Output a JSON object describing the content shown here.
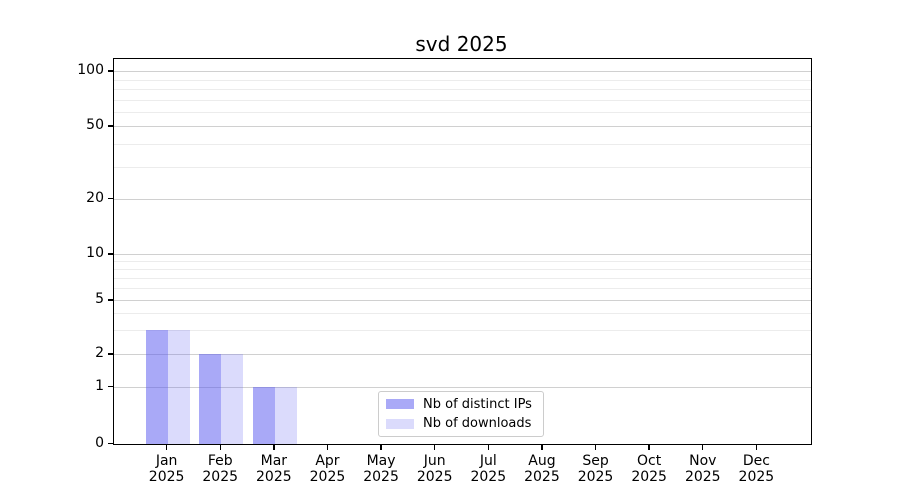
{
  "chart_data": {
    "type": "bar",
    "title": "svd 2025",
    "categories": [
      "Jan 2025",
      "Feb 2025",
      "Mar 2025",
      "Apr 2025",
      "May 2025",
      "Jun 2025",
      "Jul 2025",
      "Aug 2025",
      "Sep 2025",
      "Oct 2025",
      "Nov 2025",
      "Dec 2025"
    ],
    "series": [
      {
        "name": "Nb of distinct IPs",
        "color": "rgba(90,90,240,0.52)",
        "color_hex": "#a9a9f8",
        "values": [
          3,
          2,
          1,
          0,
          0,
          0,
          0,
          0,
          0,
          0,
          0,
          0
        ]
      },
      {
        "name": "Nb of downloads",
        "color": "rgba(90,90,240,0.22)",
        "color_hex": "#dadaf9",
        "values": [
          3,
          2,
          1,
          0,
          0,
          0,
          0,
          0,
          0,
          0,
          0,
          0
        ]
      }
    ],
    "y_axis": {
      "scale": "symlog",
      "major_ticks": [
        0,
        1,
        2,
        5,
        10,
        20,
        50,
        100
      ],
      "major_tick_labels": [
        "0",
        "1",
        "2",
        "5",
        "10",
        "20",
        "50",
        "100"
      ],
      "minor_ticks": [
        3,
        4,
        6,
        7,
        8,
        9,
        30,
        40,
        60,
        70,
        80,
        90
      ],
      "ylim": [
        0,
        118
      ]
    },
    "xlabel": "",
    "ylabel": "",
    "grid": true,
    "legend_position": "lower-center"
  },
  "colors": {
    "major_grid": "#d0d0d0",
    "minor_grid": "#ececec",
    "spine": "#000000",
    "legend_border": "#cccccc",
    "background": "#ffffff"
  }
}
